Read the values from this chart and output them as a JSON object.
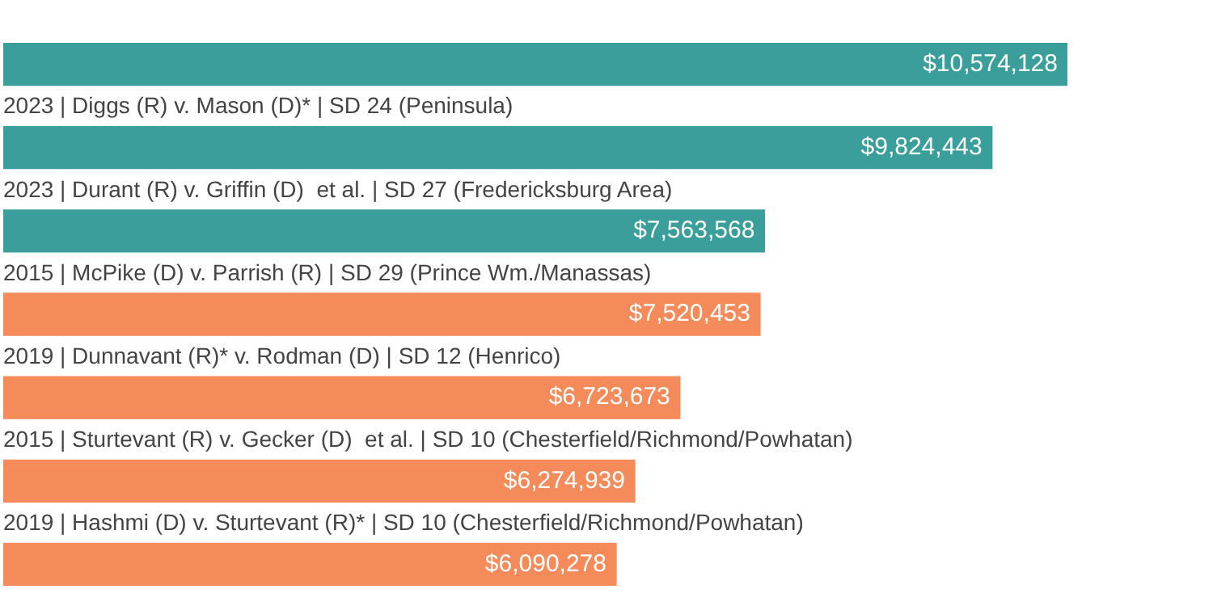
{
  "chart_data": {
    "type": "bar",
    "orientation": "horizontal",
    "data_labels": false,
    "categories": [
      null,
      "2023 | Diggs (R) v. Mason (D)* | SD 24 (Peninsula)",
      "2023 | Durant (R) v. Griffin (D)  et al. | SD 27 (Fredericksburg Area)",
      "2015 | McPike (D) v. Parrish (R) | SD 29 (Prince Wm./Manassas)",
      "2019 | Dunnavant (R)* v. Rodman (D) | SD 12 (Henrico)",
      "2015 | Sturtevant (R) v. Gecker (D)  et al. | SD 10 (Chesterfield/Richmond/Powhatan)",
      "2019 | Hashmi (D) v. Sturtevant (R)* | SD 10 (Chesterfield/Richmond/Powhatan)"
    ],
    "values": [
      10574128,
      9824443,
      7563568,
      7520453,
      6723673,
      6274939,
      6090278
    ],
    "value_labels": [
      "$10,574,128",
      "$9,824,443",
      "$7,563,568",
      "$7,520,453",
      "$6,723,673",
      "$6,274,939",
      "$6,090,278"
    ],
    "colors": [
      "#3a9e9a",
      "#3a9e9a",
      "#3a9e9a",
      "#f58b5a",
      "#f58b5a",
      "#f58b5a",
      "#f58b5a"
    ],
    "legend": false
  }
}
